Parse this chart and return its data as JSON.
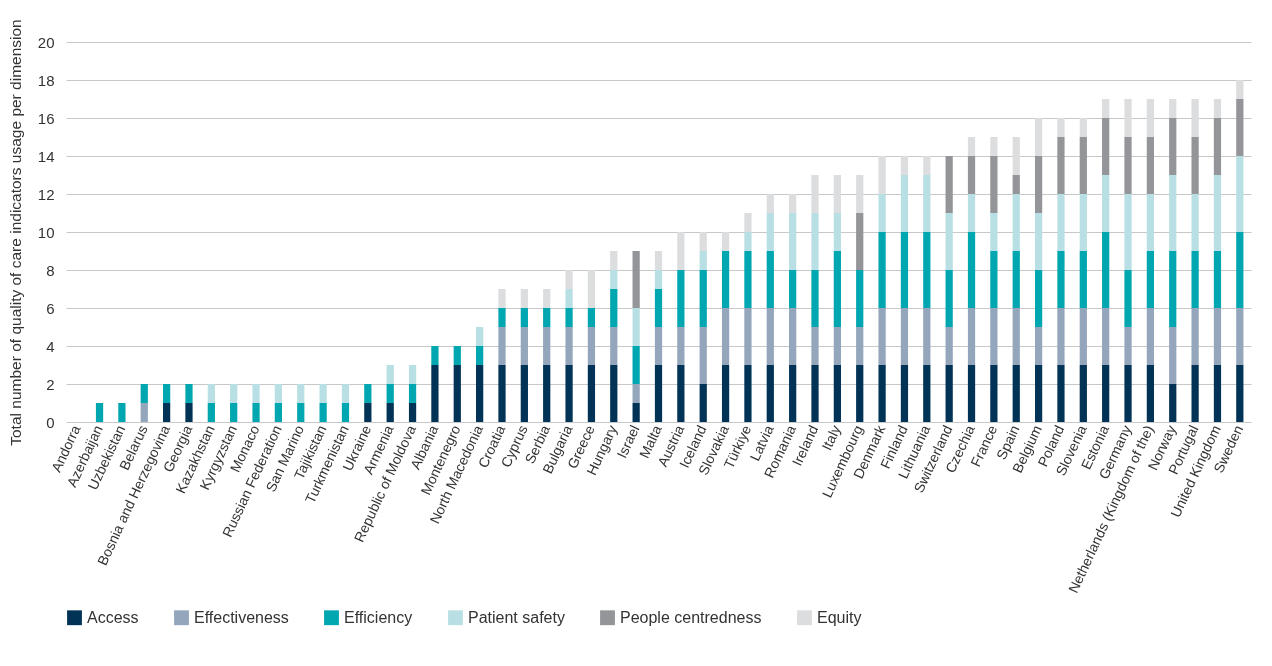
{
  "chart_data": {
    "type": "bar",
    "stacked": true,
    "ylabel": "Total number of quality of care indicators usage per dimension",
    "categories": [
      "Andorra",
      "Azerbaijan",
      "Uzbekistan",
      "Belarus",
      "Bosnia and Herzegovina",
      "Georgia",
      "Kazakhstan",
      "Kyrgyzstan",
      "Monaco",
      "Russian Federation",
      "San Marino",
      "Tajikistan",
      "Turkmenistan",
      "Ukraine",
      "Armenia",
      "Republic of Moldova",
      "Albania",
      "Montenegro",
      "North Macedonia",
      "Croatia",
      "Cyprus",
      "Serbia",
      "Bulgaria",
      "Greece",
      "Hungary",
      "Israel",
      "Malta",
      "Austria",
      "Iceland",
      "Slovakia",
      "Türkiye",
      "Latvia",
      "Romania",
      "Ireland",
      "Italy",
      "Luxembourg",
      "Denmark",
      "Finland",
      "Lithuania",
      "Switzerland",
      "Czechia",
      "France",
      "Spain",
      "Belgium",
      "Poland",
      "Slovenia",
      "Estonia",
      "Germany",
      "Netherlands (Kingdom of the)",
      "Norway",
      "Portugal",
      "United Kingdom",
      "Sweden"
    ],
    "series": [
      {
        "name": "Access",
        "color": "#003356",
        "values": [
          0,
          0,
          0,
          0,
          1,
          1,
          0,
          0,
          0,
          0,
          0,
          0,
          0,
          1,
          1,
          1,
          3,
          3,
          3,
          3,
          3,
          3,
          3,
          3,
          3,
          1,
          3,
          3,
          2,
          3,
          3,
          3,
          3,
          3,
          3,
          3,
          3,
          3,
          3,
          3,
          3,
          3,
          3,
          3,
          3,
          3,
          3,
          3,
          3,
          2,
          3,
          3,
          3
        ]
      },
      {
        "name": "Effectiveness",
        "color": "#94a6bb",
        "values": [
          0,
          0,
          0,
          1,
          0,
          0,
          0,
          0,
          0,
          0,
          0,
          0,
          0,
          0,
          0,
          0,
          0,
          0,
          0,
          2,
          2,
          2,
          2,
          2,
          2,
          1,
          2,
          2,
          3,
          3,
          3,
          3,
          3,
          2,
          2,
          2,
          3,
          3,
          3,
          2,
          3,
          3,
          3,
          2,
          3,
          3,
          3,
          2,
          3,
          3,
          3,
          3,
          3
        ]
      },
      {
        "name": "Efficiency",
        "color": "#00a6b0",
        "values": [
          0,
          1,
          1,
          1,
          1,
          1,
          1,
          1,
          1,
          1,
          1,
          1,
          1,
          1,
          1,
          1,
          1,
          1,
          1,
          1,
          1,
          1,
          1,
          1,
          2,
          2,
          2,
          3,
          3,
          3,
          3,
          3,
          2,
          3,
          4,
          3,
          4,
          4,
          4,
          3,
          4,
          3,
          3,
          3,
          3,
          3,
          4,
          3,
          3,
          4,
          3,
          3,
          4
        ]
      },
      {
        "name": "Patient safety",
        "color": "#b8dfe3",
        "values": [
          0,
          0,
          0,
          0,
          0,
          0,
          1,
          1,
          1,
          1,
          1,
          1,
          1,
          0,
          1,
          1,
          0,
          0,
          1,
          0,
          0,
          0,
          1,
          0,
          1,
          2,
          1,
          0,
          1,
          0,
          1,
          2,
          3,
          3,
          2,
          0,
          2,
          3,
          3,
          3,
          2,
          2,
          3,
          3,
          3,
          3,
          3,
          4,
          3,
          4,
          3,
          4,
          4
        ]
      },
      {
        "name": "People centredness",
        "color": "#939598",
        "values": [
          0,
          0,
          0,
          0,
          0,
          0,
          0,
          0,
          0,
          0,
          0,
          0,
          0,
          0,
          0,
          0,
          0,
          0,
          0,
          0,
          0,
          0,
          0,
          0,
          0,
          3,
          0,
          0,
          0,
          0,
          0,
          0,
          0,
          0,
          0,
          3,
          0,
          0,
          0,
          3,
          2,
          3,
          1,
          3,
          3,
          3,
          3,
          3,
          3,
          3,
          3,
          3,
          3
        ]
      },
      {
        "name": "Equity",
        "color": "#dcdddf",
        "values": [
          0,
          0,
          0,
          0,
          0,
          0,
          0,
          0,
          0,
          0,
          0,
          0,
          0,
          0,
          0,
          0,
          0,
          0,
          0,
          1,
          1,
          1,
          1,
          2,
          1,
          0,
          1,
          2,
          1,
          1,
          1,
          1,
          1,
          2,
          2,
          2,
          2,
          1,
          1,
          0,
          1,
          1,
          2,
          2,
          1,
          1,
          1,
          2,
          2,
          1,
          2,
          1,
          1
        ]
      }
    ],
    "ylim": [
      0,
      20
    ],
    "yticks": [
      0,
      2,
      4,
      6,
      8,
      10,
      12,
      14,
      16,
      18,
      20
    ],
    "grid": "y",
    "legend": "bottom"
  }
}
